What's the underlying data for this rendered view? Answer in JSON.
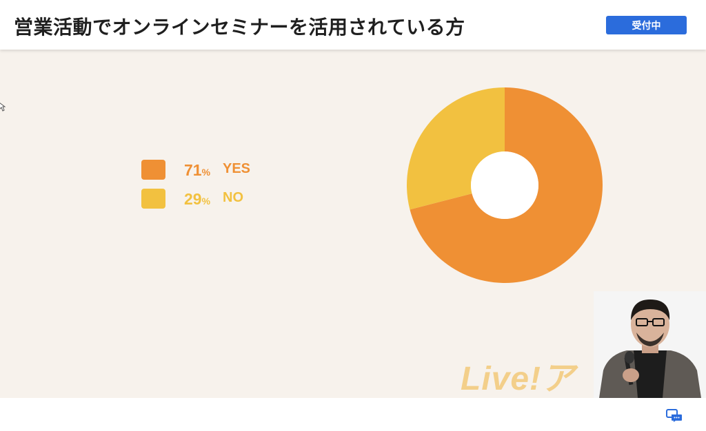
{
  "header": {
    "title": "営業活動でオンラインセミナーを活用されている方",
    "status_label": "受付中"
  },
  "colors": {
    "accent_blue": "#2b6cdc",
    "yes": "#ef9034",
    "no": "#f2c140",
    "slide_bg": "#f7f2ec"
  },
  "legend": [
    {
      "value": "71",
      "unit": "%",
      "label": "YES"
    },
    {
      "value": "29",
      "unit": "%",
      "label": "NO"
    }
  ],
  "chart_data": {
    "type": "pie",
    "categories": [
      "YES",
      "NO"
    ],
    "values": [
      71,
      29
    ],
    "unit": "%",
    "title": "",
    "colors": [
      "#ef9034",
      "#f2c140"
    ]
  },
  "watermark": {
    "text": "Live!ア"
  },
  "icons": {
    "chat": "chat-icon",
    "cursor": "cursor-icon",
    "bolt": "bolt-icon"
  }
}
